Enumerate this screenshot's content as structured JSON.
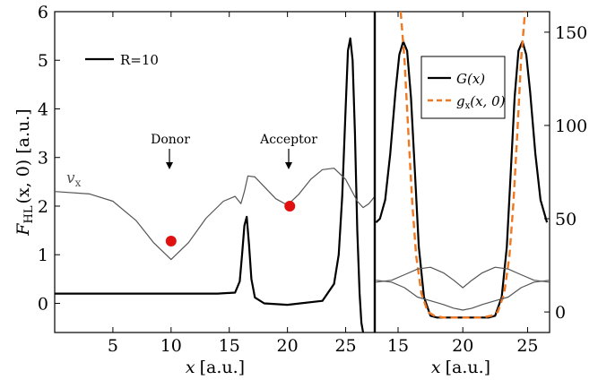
{
  "chart_data": [
    {
      "type": "line",
      "panel": "left",
      "ylabel": "F_HL(x, 0) [a.u.]",
      "ylabel_parts": {
        "main": "F",
        "sub": "HL",
        "args": "(x, 0) [a.u.]"
      },
      "xlabel": "x [a.u.]",
      "xlabel_parts": {
        "var": "x",
        "unit": "[a.u.]"
      },
      "xlim": [
        0,
        27.5
      ],
      "ylim": [
        -0.6,
        6.0
      ],
      "xticks": [
        5,
        10,
        15,
        20,
        25
      ],
      "yticks": [
        0,
        1,
        2,
        3,
        4,
        5,
        6
      ],
      "legend": {
        "label": "R=10"
      },
      "annotations": [
        {
          "text": "Donor",
          "x": 10,
          "y": 3.7,
          "arrow_to": 3.28
        },
        {
          "text": "Acceptor",
          "x": 20.3,
          "y": 3.7,
          "arrow_to": 3.28
        }
      ],
      "curve_label": {
        "text": "v_x",
        "main": "v",
        "sub": "x"
      },
      "series": [
        {
          "name": "R=10",
          "color": "#000000",
          "x": [
            0,
            5,
            10,
            14,
            15.5,
            15.9,
            16.1,
            16.3,
            16.5,
            16.7,
            16.9,
            17.2,
            18,
            20,
            23,
            24,
            24.4,
            24.7,
            25.0,
            25.2,
            25.4,
            25.6,
            25.8,
            26.0,
            26.2,
            26.35,
            26.5
          ],
          "y": [
            0.2,
            0.2,
            0.2,
            0.2,
            0.22,
            0.45,
            1.0,
            1.6,
            1.78,
            1.2,
            0.5,
            0.12,
            0.0,
            -0.03,
            0.05,
            0.4,
            1.0,
            2.2,
            4.0,
            5.2,
            5.45,
            5.0,
            3.5,
            1.5,
            0.2,
            -0.4,
            -0.6
          ]
        },
        {
          "name": "v_x",
          "color": "#555555",
          "x": [
            0,
            3,
            5,
            7,
            8.5,
            10,
            11.5,
            13,
            14.5,
            15.5,
            16.0,
            16.3,
            16.6,
            17.2,
            18,
            19,
            20,
            21,
            22,
            23,
            24,
            25,
            26,
            26.5,
            27,
            27.5
          ],
          "y": [
            2.3,
            2.25,
            2.1,
            1.7,
            1.25,
            0.9,
            1.25,
            1.75,
            2.1,
            2.2,
            2.05,
            2.3,
            2.62,
            2.6,
            2.4,
            2.15,
            2.02,
            2.25,
            2.55,
            2.75,
            2.78,
            2.55,
            2.1,
            1.97,
            2.05,
            2.2
          ]
        }
      ],
      "markers": [
        {
          "x": 10,
          "y": 1.28,
          "color": "#e01010"
        },
        {
          "x": 20.2,
          "y": 2.0,
          "color": "#e01010"
        }
      ]
    },
    {
      "type": "line",
      "panel": "right",
      "xlabel": "x [a.u.]",
      "xlabel_parts": {
        "var": "x",
        "unit": "[a.u.]"
      },
      "xlim": [
        13.2,
        26.7
      ],
      "ylim": [
        -11,
        161
      ],
      "xticks": [
        15,
        20,
        25
      ],
      "yticks": [
        0,
        50,
        100,
        150
      ],
      "legend": {
        "entries": [
          {
            "label": "G(x)",
            "color": "#000000",
            "style": "solid"
          },
          {
            "label": "g_x(x, 0)",
            "main": "g",
            "sub": "x",
            "args": "(x, 0)",
            "color": "#f07820",
            "style": "dashed"
          }
        ]
      },
      "series": [
        {
          "name": "G(x)",
          "color": "#000000",
          "x": [
            13.3,
            13.6,
            14.0,
            14.4,
            14.8,
            15.1,
            15.4,
            15.7,
            16.0,
            16.3,
            16.6,
            17.0,
            17.5,
            18,
            19,
            20,
            21,
            22,
            22.5,
            23.0,
            23.4,
            23.7,
            24.0,
            24.3,
            24.6,
            24.9,
            25.2,
            25.6,
            26.0,
            26.5
          ],
          "y": [
            48,
            50,
            60,
            85,
            118,
            138,
            145,
            140,
            115,
            75,
            35,
            8,
            -2,
            -3,
            -3,
            -3,
            -3,
            -3,
            -2,
            8,
            35,
            75,
            115,
            140,
            145,
            138,
            118,
            85,
            60,
            48
          ]
        },
        {
          "name": "g_x(x, 0)",
          "color": "#f07820",
          "dashed": true,
          "x": [
            15.2,
            15.5,
            15.8,
            16.1,
            16.4,
            16.8,
            17.3,
            17.8,
            18.5,
            20,
            21.5,
            22.2,
            22.7,
            23.2,
            23.6,
            23.9,
            24.2,
            24.5,
            24.8
          ],
          "y": [
            161,
            135,
            95,
            58,
            30,
            10,
            0,
            -2,
            -3,
            -3,
            -3,
            -2,
            0,
            10,
            30,
            58,
            95,
            135,
            161
          ]
        },
        {
          "name": "upper thin",
          "color": "#555555",
          "x": [
            13.3,
            14.5,
            15.5,
            16.5,
            17.5,
            18.5,
            19.3,
            20,
            20.7,
            21.5,
            22.5,
            23.5,
            24.5,
            25.5,
            26.7
          ],
          "y": [
            16,
            17,
            20,
            23,
            24,
            21,
            17,
            13,
            17,
            21,
            24,
            23,
            20,
            17,
            16
          ]
        },
        {
          "name": "lower thin",
          "color": "#555555",
          "x": [
            13.3,
            14.5,
            15.5,
            16.5,
            17.5,
            18.5,
            19.3,
            20,
            20.7,
            21.5,
            22.5,
            23.5,
            24.5,
            25.5,
            26.7
          ],
          "y": [
            17,
            16,
            13,
            8,
            6,
            4,
            2,
            1,
            2,
            4,
            6,
            8,
            13,
            16,
            17
          ]
        }
      ]
    }
  ]
}
